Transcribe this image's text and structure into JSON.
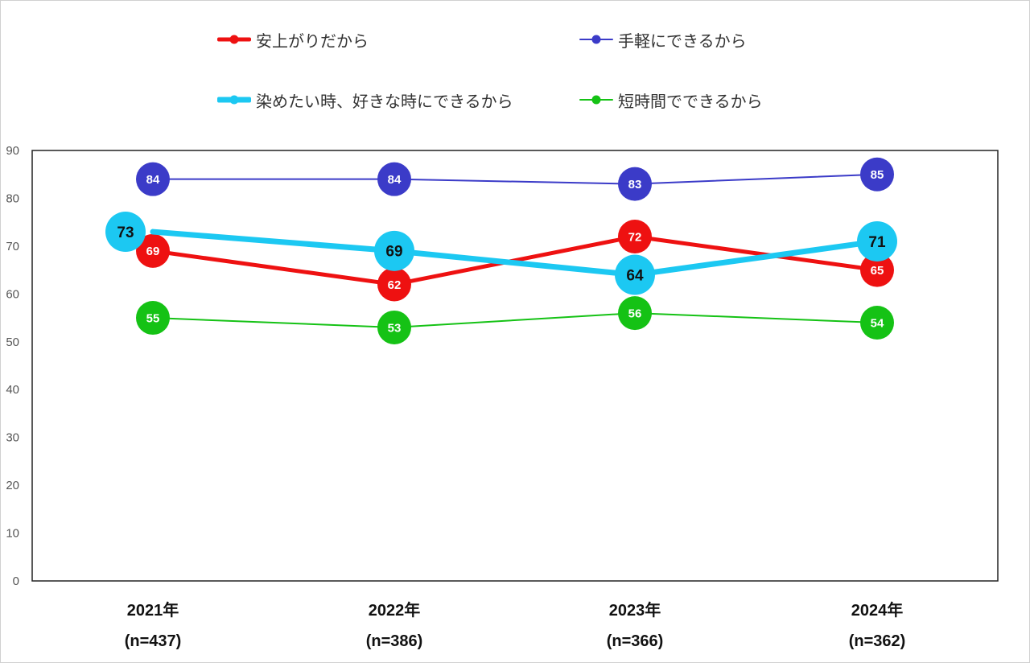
{
  "chart_data": {
    "type": "line",
    "categories": [
      "2021年",
      "2022年",
      "2023年",
      "2024年"
    ],
    "category_sublabels": [
      "(n=437)",
      "(n=386)",
      "(n=366)",
      "(n=362)"
    ],
    "ylim": [
      0,
      90
    ],
    "yticks": [
      0,
      10,
      20,
      30,
      40,
      50,
      60,
      70,
      80,
      90
    ],
    "legend_position": "top",
    "series": [
      {
        "name": "安上がりだから",
        "color": "#ee1111",
        "values": [
          69,
          62,
          72,
          65
        ],
        "labels": [
          "69",
          "62",
          "72",
          "65"
        ],
        "label_color": "#ffffff"
      },
      {
        "name": "手軽にできるから",
        "color": "#3b3bc8",
        "values": [
          84,
          84,
          83,
          85
        ],
        "labels": [
          "84",
          "84",
          "83",
          "85"
        ],
        "label_color": "#ffffff"
      },
      {
        "name": "染めたい時、好きな時にできるから",
        "color": "#1cc8f2",
        "values": [
          73,
          69,
          64,
          71
        ],
        "labels": [
          "73",
          "69",
          "64",
          "71"
        ],
        "label_color": "#111111"
      },
      {
        "name": "短時間でできるから",
        "color": "#15c215",
        "values": [
          55,
          53,
          56,
          54
        ],
        "labels": [
          "55",
          "53",
          "56",
          "54"
        ],
        "label_color": "#ffffff"
      }
    ]
  }
}
